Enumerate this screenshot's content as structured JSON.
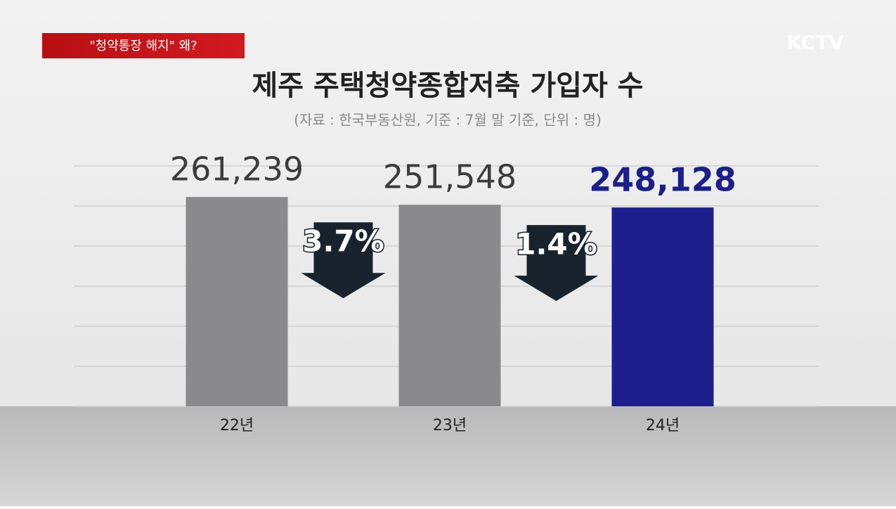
{
  "header": {
    "tag": "\"청약통장 해지\" 왜?",
    "logo": "KCTV"
  },
  "chart_data": {
    "type": "bar",
    "title": "제주 주택청약종합저축 가입자 수",
    "subtitle": "(자료 : 한국부동산원, 기준 : 7월 말 기준, 단위 : 명)",
    "categories": [
      "22년",
      "23년",
      "24년"
    ],
    "values": [
      261239,
      251548,
      248128
    ],
    "value_labels": [
      "261,239",
      "251,548",
      "248,128"
    ],
    "colors": [
      "#8a898b",
      "#8a898b",
      "#1c1e8c"
    ],
    "label_colors": [
      "#3c3c3c",
      "#3c3c3c",
      "#1c1e8c"
    ],
    "annotations": [
      "3.7%",
      "1.4%"
    ],
    "ylim": [
      0,
      300000
    ],
    "yticks": [
      0,
      50000,
      100000,
      150000,
      200000,
      250000,
      300000
    ],
    "grid": true
  }
}
